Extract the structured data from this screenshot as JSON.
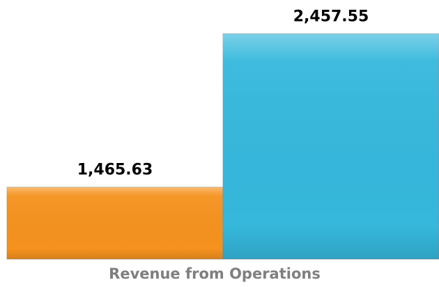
{
  "chart_data": {
    "type": "bar",
    "categories": [
      "Revenue from Operations"
    ],
    "series": [
      {
        "color": "#f5921e",
        "values": [
          1465.63
        ],
        "value_labels": [
          "1,465.63"
        ]
      },
      {
        "color": "#35b8dc",
        "values": [
          2457.55
        ],
        "value_labels": [
          "2,457.55"
        ]
      }
    ],
    "ylim": [
      1000,
      2500
    ]
  }
}
